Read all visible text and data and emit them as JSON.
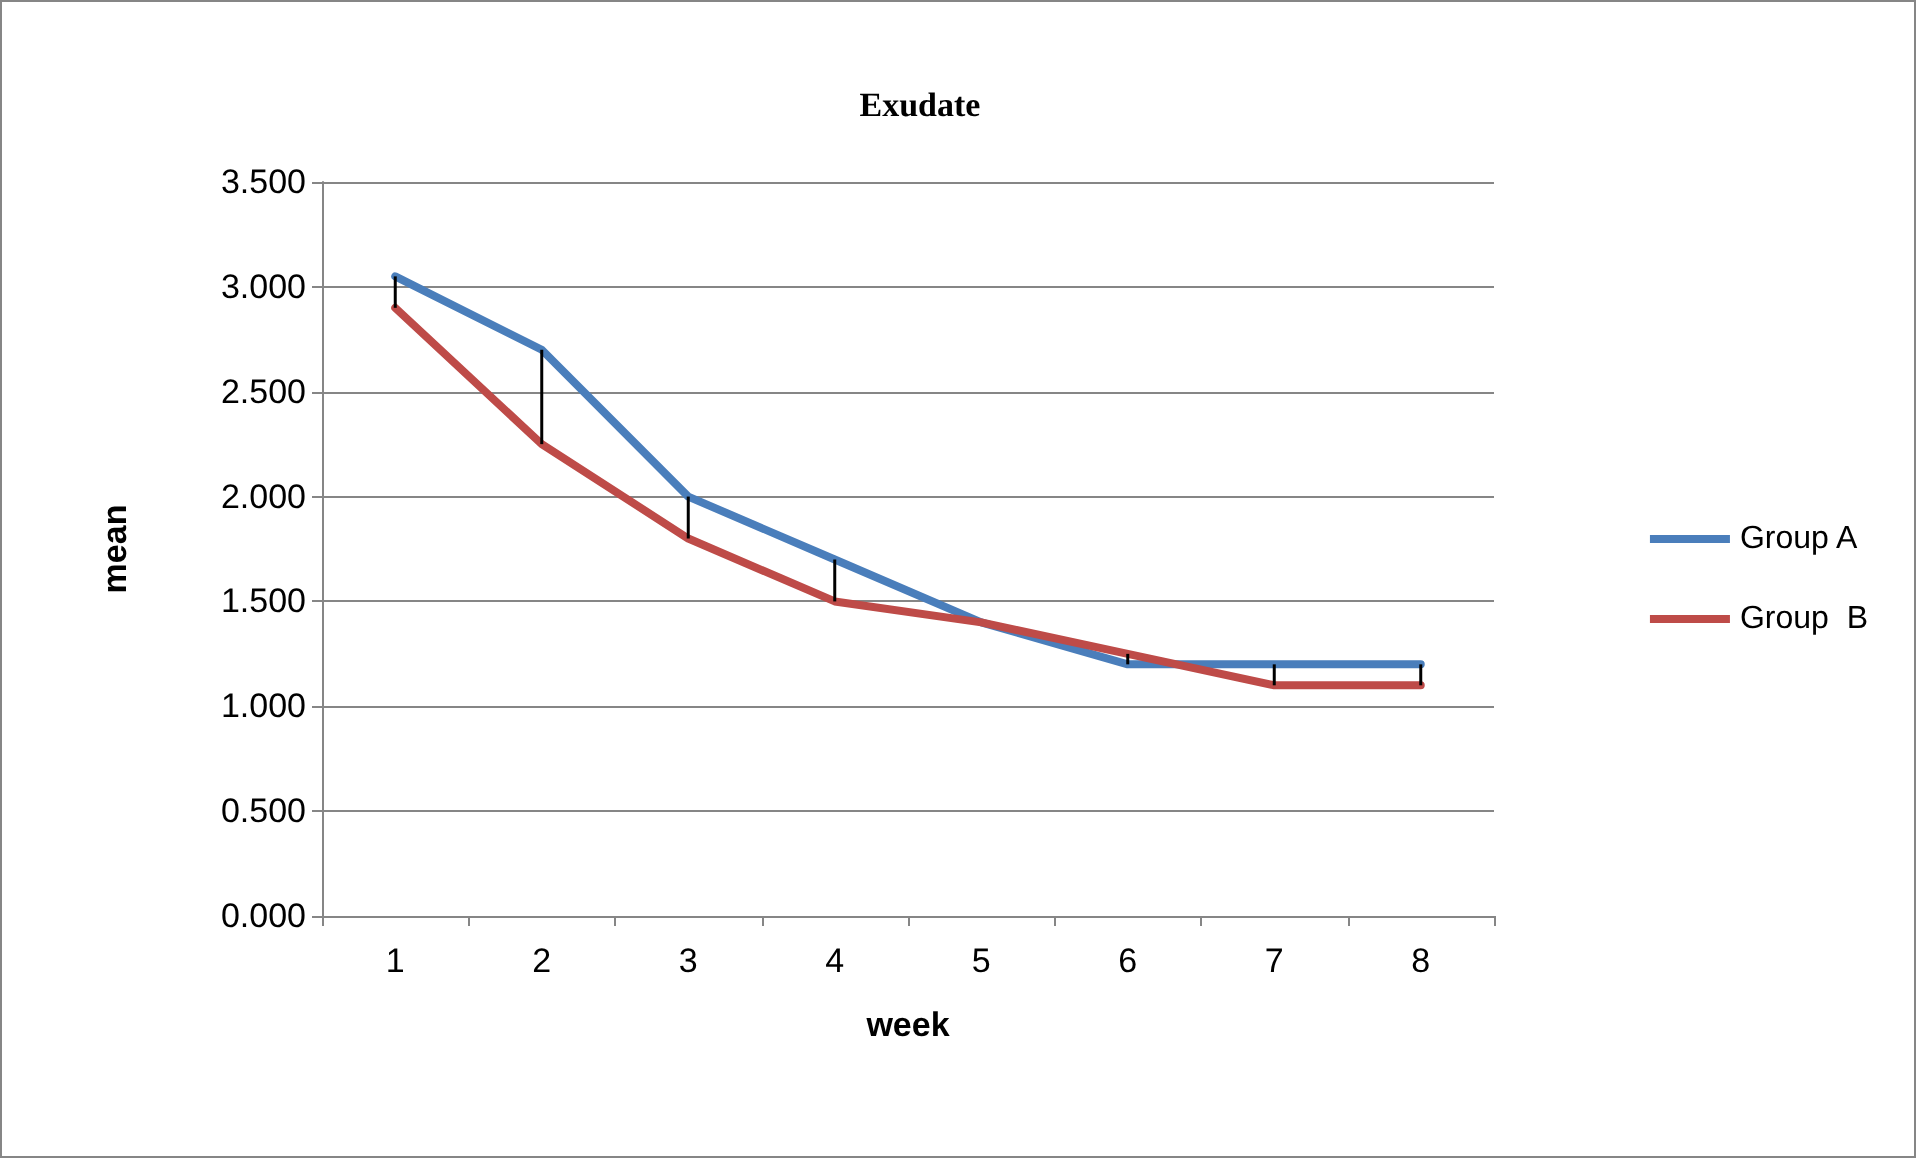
{
  "chart_data": {
    "type": "line",
    "title": "Exudate",
    "xlabel": "week",
    "ylabel": "mean",
    "categories": [
      "1",
      "2",
      "3",
      "4",
      "5",
      "6",
      "7",
      "8"
    ],
    "series": [
      {
        "name": "Group A",
        "color": "#4a7ebb",
        "values": [
          3.05,
          2.7,
          2.0,
          1.7,
          1.4,
          1.2,
          1.2,
          1.2
        ],
        "errors": [
          [
            2.9,
            3.05
          ],
          [
            2.25,
            2.7
          ],
          [
            1.8,
            2.0
          ],
          [
            1.5,
            1.7
          ],
          null,
          [
            1.2,
            1.25
          ],
          [
            1.1,
            1.2
          ],
          [
            1.1,
            1.2
          ]
        ]
      },
      {
        "name": "Group  B",
        "color": "#be4b48",
        "values": [
          2.9,
          2.25,
          1.8,
          1.5,
          1.4,
          1.25,
          1.1,
          1.1
        ]
      }
    ],
    "ylim": [
      0,
      3.5
    ],
    "yticks": [
      {
        "value": 0,
        "label": "0.000"
      },
      {
        "value": 0.5,
        "label": "0.500"
      },
      {
        "value": 1,
        "label": "1.000"
      },
      {
        "value": 1.5,
        "label": "1.500"
      },
      {
        "value": 2,
        "label": "2.000"
      },
      {
        "value": 2.5,
        "label": "2.500"
      },
      {
        "value": 3,
        "label": "3.000"
      },
      {
        "value": 3.5,
        "label": "3.500"
      }
    ],
    "grid": "y",
    "legend": "right",
    "marker": "none",
    "line_style": "solid"
  }
}
